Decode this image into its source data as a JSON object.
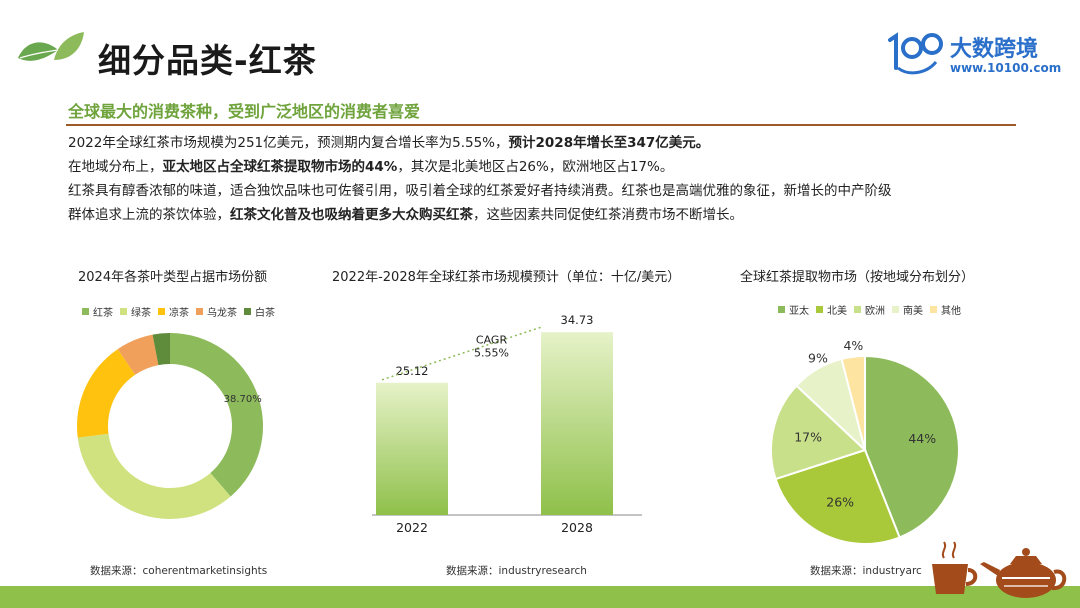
{
  "header": {
    "title": "细分品类-红茶",
    "brand_name": "大数跨境",
    "brand_url": "www.10100.com",
    "brand_logo_text": "100"
  },
  "subtitle": "全球最大的消费茶种，受到广泛地区的消费者喜爱",
  "body": {
    "p1_normal": "2022年全球红茶市场规模为251亿美元，预测期内复合增长率为5.55%，",
    "p1_bold": "预计2028年增长至347亿美元。",
    "p2_normal_a": "在地域分布上，",
    "p2_bold": "亚太地区占全球红茶提取物市场的44%",
    "p2_normal_b": "，其次是北美地区占26%，欧洲地区占17%。",
    "p3_line1": "红茶具有醇香浓郁的味道，适合独饮品味也可佐餐引用，吸引着全球的红茶爱好者持续消费。红茶也是高端优雅的象征，新增长的中产阶级",
    "p3_line2_a": "群体追求上流的茶饮体验，",
    "p3_line2_bold": "红茶文化普及也吸纳着更多大众购买红茶",
    "p3_line2_b": "，这些因素共同促使红茶消费市场不断增长。"
  },
  "colors": {
    "green_dark": "#8dbb5c",
    "green_light": "#cfe27f",
    "yellow": "#ffc20e",
    "orange": "#f0a05a",
    "dark_green": "#5e8c3a",
    "accent_green": "#6fa33c",
    "brand_blue": "#2a6fc9",
    "divider_brown": "#9c5a2a"
  },
  "chart_data": [
    {
      "type": "pie",
      "variant": "donut",
      "title": "2024年各茶叶类型占据市场份额",
      "legend_position": "top",
      "categories": [
        "红茶",
        "绿茶",
        "凉茶",
        "乌龙茶",
        "白茶"
      ],
      "values": [
        38.7,
        34.3,
        17.5,
        6.5,
        3.0
      ],
      "colors": [
        "#8dbb5c",
        "#cfe27f",
        "#ffc20e",
        "#f0a05a",
        "#5e8c3a"
      ],
      "data_labels": [
        "38.70%"
      ],
      "source": "数据来源：coherentmarketinsights"
    },
    {
      "type": "bar",
      "title": "2022年-2028年全球红茶市场规模预计（单位：十亿/美元）",
      "categories": [
        "2022",
        "2028"
      ],
      "values": [
        25.12,
        34.73
      ],
      "annotation": {
        "label": "CAGR",
        "value": "5.55%"
      },
      "ylim": [
        0,
        38
      ],
      "grid": false,
      "source": "数据来源：industryresearch"
    },
    {
      "type": "pie",
      "title": "全球红茶提取物市场（按地域分布划分）",
      "legend_position": "top",
      "categories": [
        "亚太",
        "北美",
        "欧洲",
        "南美",
        "其他"
      ],
      "values": [
        44,
        26,
        17,
        9,
        4
      ],
      "labels": [
        "44%",
        "26%",
        "17%",
        "9%",
        "4%"
      ],
      "colors": [
        "#8dbb5c",
        "#a9c93a",
        "#c9e08a",
        "#e8f2c8",
        "#fde4a0"
      ],
      "source": "数据来源：industryarc"
    }
  ]
}
